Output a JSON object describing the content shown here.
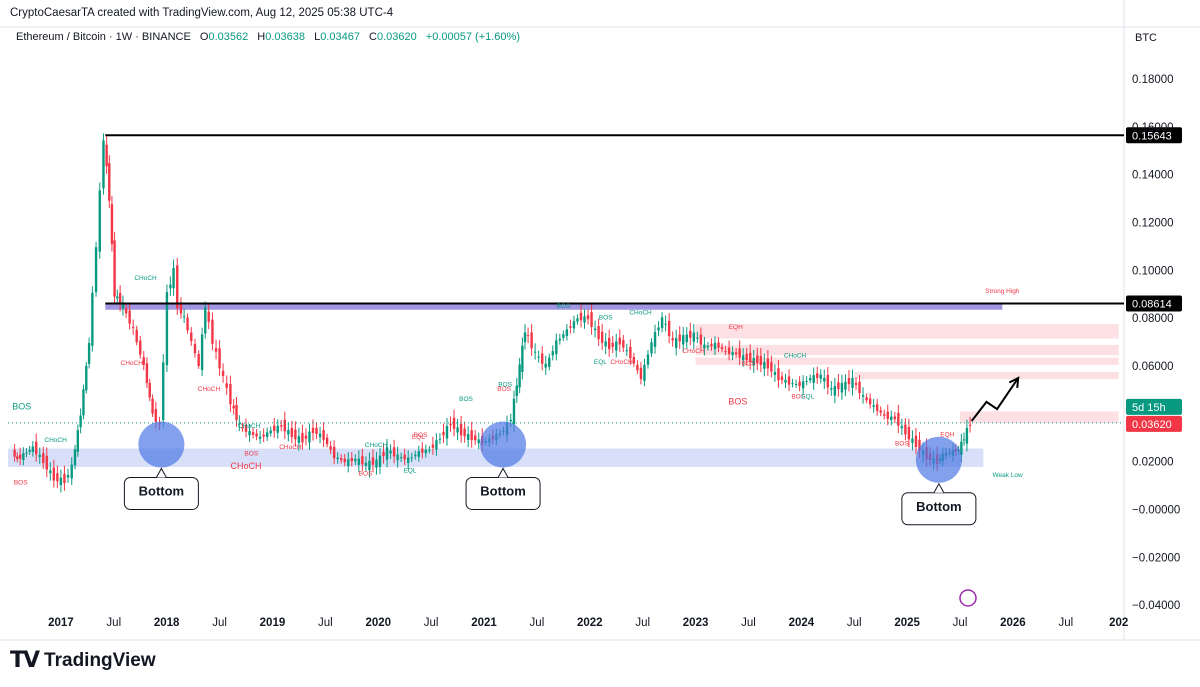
{
  "header": {
    "attribution": "CryptoCaesarTA created with TradingView.com, Aug 12, 2025 05:38 UTC-4"
  },
  "legend": {
    "symbol": "Ethereum / Bitcoin · 1W · BINANCE",
    "open_label": "O",
    "open": "0.03562",
    "high_label": "H",
    "high": "0.03638",
    "low_label": "L",
    "low": "0.03467",
    "close_label": "C",
    "close": "0.03620",
    "change": "+0.00057 (+1.60%)"
  },
  "currency": "BTC",
  "footer": {
    "brand": "TradingView",
    "logo_icon": "tradingview-logo-icon"
  },
  "colors": {
    "up": "#089981",
    "down": "#f23645",
    "zone_blue": "#c9d4f7",
    "zone_purple": "#8f84dc",
    "zone_pink": "#fbd6da",
    "circle": "#4e78e6"
  },
  "chart_data": {
    "type": "candlestick",
    "symbol": "ETHBTC",
    "timeframe": "1W",
    "ylim": [
      -0.042,
      0.19
    ],
    "y_ticks": [
      "0.18000",
      "0.16000",
      "0.14000",
      "0.12000",
      "0.10000",
      "0.08000",
      "0.06000",
      "0.02000",
      "−0.00000",
      "−0.02000",
      "−0.04000"
    ],
    "y_tick_values": [
      0.18,
      0.16,
      0.14,
      0.12,
      0.1,
      0.08,
      0.06,
      0.02,
      0.0,
      -0.02,
      -0.04
    ],
    "x_ticks": [
      "2017",
      "Jul",
      "2018",
      "Jul",
      "2019",
      "Jul",
      "2020",
      "Jul",
      "2021",
      "Jul",
      "2022",
      "Jul",
      "2023",
      "Jul",
      "2024",
      "Jul",
      "2025",
      "Jul",
      "2026",
      "Jul",
      "202"
    ],
    "x_tick_values": [
      2017.0,
      2017.5,
      2018.0,
      2018.5,
      2019.0,
      2019.5,
      2020.0,
      2020.5,
      2021.0,
      2021.5,
      2022.0,
      2022.5,
      2023.0,
      2023.5,
      2024.0,
      2024.5,
      2025.0,
      2025.5,
      2026.0,
      2026.5,
      2027.0
    ],
    "bold_x_ticks": [
      "2017",
      "2018",
      "2019",
      "2020",
      "2021",
      "2022",
      "2023",
      "2024",
      "2025",
      "2026",
      "202"
    ],
    "price_path": [
      [
        2016.55,
        0.024
      ],
      [
        2016.6,
        0.021
      ],
      [
        2016.75,
        0.026
      ],
      [
        2016.85,
        0.02
      ],
      [
        2016.95,
        0.013
      ],
      [
        2017.05,
        0.012
      ],
      [
        2017.12,
        0.018
      ],
      [
        2017.2,
        0.04
      ],
      [
        2017.28,
        0.07
      ],
      [
        2017.35,
        0.11
      ],
      [
        2017.42,
        0.155
      ],
      [
        2017.47,
        0.13
      ],
      [
        2017.52,
        0.09
      ],
      [
        2017.6,
        0.085
      ],
      [
        2017.7,
        0.075
      ],
      [
        2017.8,
        0.06
      ],
      [
        2017.88,
        0.04
      ],
      [
        2017.95,
        0.035
      ],
      [
        2018.02,
        0.09
      ],
      [
        2018.08,
        0.1
      ],
      [
        2018.12,
        0.085
      ],
      [
        2018.18,
        0.08
      ],
      [
        2018.25,
        0.07
      ],
      [
        2018.32,
        0.06
      ],
      [
        2018.38,
        0.085
      ],
      [
        2018.45,
        0.07
      ],
      [
        2018.55,
        0.055
      ],
      [
        2018.62,
        0.045
      ],
      [
        2018.7,
        0.035
      ],
      [
        2018.8,
        0.032
      ],
      [
        2018.9,
        0.03
      ],
      [
        2019.0,
        0.033
      ],
      [
        2019.1,
        0.035
      ],
      [
        2019.2,
        0.031
      ],
      [
        2019.3,
        0.029
      ],
      [
        2019.4,
        0.033
      ],
      [
        2019.5,
        0.03
      ],
      [
        2019.6,
        0.022
      ],
      [
        2019.7,
        0.02
      ],
      [
        2019.8,
        0.021
      ],
      [
        2019.9,
        0.019
      ],
      [
        2020.0,
        0.02
      ],
      [
        2020.1,
        0.025
      ],
      [
        2020.2,
        0.022
      ],
      [
        2020.3,
        0.021
      ],
      [
        2020.4,
        0.024
      ],
      [
        2020.5,
        0.025
      ],
      [
        2020.6,
        0.03
      ],
      [
        2020.7,
        0.036
      ],
      [
        2020.8,
        0.032
      ],
      [
        2020.9,
        0.03
      ],
      [
        2021.0,
        0.028
      ],
      [
        2021.1,
        0.03
      ],
      [
        2021.2,
        0.033
      ],
      [
        2021.27,
        0.038
      ],
      [
        2021.35,
        0.06
      ],
      [
        2021.4,
        0.075
      ],
      [
        2021.5,
        0.065
      ],
      [
        2021.6,
        0.06
      ],
      [
        2021.7,
        0.07
      ],
      [
        2021.8,
        0.075
      ],
      [
        2021.9,
        0.08
      ],
      [
        2022.0,
        0.08
      ],
      [
        2022.1,
        0.072
      ],
      [
        2022.2,
        0.068
      ],
      [
        2022.3,
        0.07
      ],
      [
        2022.4,
        0.064
      ],
      [
        2022.5,
        0.055
      ],
      [
        2022.6,
        0.07
      ],
      [
        2022.7,
        0.08
      ],
      [
        2022.8,
        0.07
      ],
      [
        2022.9,
        0.072
      ],
      [
        2023.0,
        0.073
      ],
      [
        2023.1,
        0.068
      ],
      [
        2023.2,
        0.069
      ],
      [
        2023.3,
        0.066
      ],
      [
        2023.4,
        0.065
      ],
      [
        2023.5,
        0.063
      ],
      [
        2023.6,
        0.062
      ],
      [
        2023.7,
        0.06
      ],
      [
        2023.8,
        0.055
      ],
      [
        2023.9,
        0.053
      ],
      [
        2024.0,
        0.052
      ],
      [
        2024.1,
        0.055
      ],
      [
        2024.2,
        0.056
      ],
      [
        2024.3,
        0.05
      ],
      [
        2024.4,
        0.052
      ],
      [
        2024.5,
        0.054
      ],
      [
        2024.6,
        0.047
      ],
      [
        2024.7,
        0.043
      ],
      [
        2024.8,
        0.039
      ],
      [
        2024.9,
        0.038
      ],
      [
        2025.0,
        0.032
      ],
      [
        2025.1,
        0.027
      ],
      [
        2025.2,
        0.022
      ],
      [
        2025.3,
        0.02
      ],
      [
        2025.35,
        0.023
      ],
      [
        2025.42,
        0.024
      ],
      [
        2025.5,
        0.025
      ],
      [
        2025.55,
        0.03
      ],
      [
        2025.61,
        0.0362
      ]
    ],
    "horizontal_levels": [
      {
        "label": "0.15643",
        "value": 0.15643,
        "x_start": 2017.42
      },
      {
        "label": "0.08614",
        "value": 0.08614,
        "x_start": 2017.42
      }
    ],
    "last_price": {
      "label": "0.03620",
      "value": 0.0362
    },
    "countdown": "5d 15h",
    "zones": [
      {
        "name": "purple supply",
        "x": [
          2017.42,
          2025.9
        ],
        "y": [
          0.0835,
          0.0865
        ],
        "color": "purple"
      },
      {
        "name": "blue demand",
        "x": [
          2016.5,
          2025.72
        ],
        "y": [
          0.0178,
          0.0255
        ],
        "color": "blue"
      },
      {
        "name": "pink 1",
        "x": [
          2023.0,
          2027.0
        ],
        "y": [
          0.0715,
          0.0775
        ],
        "color": "pink"
      },
      {
        "name": "pink 2",
        "x": [
          2023.0,
          2027.0
        ],
        "y": [
          0.0645,
          0.0688
        ],
        "color": "pink"
      },
      {
        "name": "pink 3",
        "x": [
          2023.0,
          2027.0
        ],
        "y": [
          0.0605,
          0.0635
        ],
        "color": "pink"
      },
      {
        "name": "pink 4",
        "x": [
          2024.5,
          2027.0
        ],
        "y": [
          0.0545,
          0.0575
        ],
        "color": "pink"
      },
      {
        "name": "pink 5",
        "x": [
          2025.5,
          2027.0
        ],
        "y": [
          0.0362,
          0.041
        ],
        "color": "pink"
      }
    ],
    "bottoms": [
      {
        "label": "Bottom",
        "x": 2017.95,
        "y": 0.0272
      },
      {
        "label": "Bottom",
        "x": 2021.18,
        "y": 0.0272
      },
      {
        "label": "Bottom",
        "x": 2025.3,
        "y": 0.0208
      }
    ],
    "projection_arrow": [
      [
        2025.61,
        0.037
      ],
      [
        2025.75,
        0.045
      ],
      [
        2025.85,
        0.042
      ],
      [
        2026.05,
        0.055
      ]
    ],
    "annotations": [
      {
        "text": "BOS",
        "x": 2016.63,
        "y": 0.0418,
        "size": "lg",
        "color": "green"
      },
      {
        "text": "CHoCH",
        "x": 2016.95,
        "y": 0.0282,
        "size": "sm",
        "color": "green"
      },
      {
        "text": "BOS",
        "x": 2016.62,
        "y": 0.0105,
        "size": "sm",
        "color": "red"
      },
      {
        "text": "CHoCH",
        "x": 2017.8,
        "y": 0.096,
        "size": "sm",
        "color": "green"
      },
      {
        "text": "CHoCH",
        "x": 2017.67,
        "y": 0.0605,
        "size": "sm",
        "color": "red"
      },
      {
        "text": "CHoCH",
        "x": 2018.4,
        "y": 0.0495,
        "size": "sm",
        "color": "red"
      },
      {
        "text": "CHoCH",
        "x": 2018.78,
        "y": 0.034,
        "size": "sm",
        "color": "green"
      },
      {
        "text": "CHoCH",
        "x": 2018.75,
        "y": 0.017,
        "size": "lg",
        "color": "red"
      },
      {
        "text": "BOS",
        "x": 2018.8,
        "y": 0.0225,
        "size": "sm",
        "color": "red"
      },
      {
        "text": "CHoCH",
        "x": 2019.17,
        "y": 0.0254,
        "size": "sm",
        "color": "red"
      },
      {
        "text": "BOS",
        "x": 2019.88,
        "y": 0.0143,
        "size": "sm",
        "color": "red"
      },
      {
        "text": "CHoCH",
        "x": 2019.98,
        "y": 0.0262,
        "size": "sm",
        "color": "green"
      },
      {
        "text": "EQL",
        "x": 2020.3,
        "y": 0.0155,
        "size": "sm",
        "color": "green"
      },
      {
        "text": "EQL",
        "x": 2020.38,
        "y": 0.0295,
        "size": "sm",
        "color": "red"
      },
      {
        "text": "BOS",
        "x": 2020.4,
        "y": 0.0303,
        "size": "sm",
        "color": "red"
      },
      {
        "text": "BOS",
        "x": 2020.83,
        "y": 0.0453,
        "size": "sm",
        "color": "green"
      },
      {
        "text": "BOS",
        "x": 2021.19,
        "y": 0.0495,
        "size": "sm",
        "color": "red"
      },
      {
        "text": "BOS",
        "x": 2021.2,
        "y": 0.0515,
        "size": "sm",
        "color": "green"
      },
      {
        "text": "BOS",
        "x": 2021.75,
        "y": 0.0842,
        "size": "sm",
        "color": "green"
      },
      {
        "text": "BOS",
        "x": 2022.15,
        "y": 0.0795,
        "size": "sm",
        "color": "green"
      },
      {
        "text": "EQL",
        "x": 2022.1,
        "y": 0.0608,
        "size": "sm",
        "color": "green"
      },
      {
        "text": "CHoCH",
        "x": 2022.3,
        "y": 0.0608,
        "size": "sm",
        "color": "red"
      },
      {
        "text": "CHoCH",
        "x": 2022.48,
        "y": 0.0815,
        "size": "sm",
        "color": "green"
      },
      {
        "text": "CHoCH",
        "x": 2022.98,
        "y": 0.0655,
        "size": "sm",
        "color": "red"
      },
      {
        "text": "EQH",
        "x": 2023.38,
        "y": 0.0755,
        "size": "sm",
        "color": "red"
      },
      {
        "text": "BOS",
        "x": 2023.4,
        "y": 0.0438,
        "size": "lg",
        "color": "red"
      },
      {
        "text": "BOS",
        "x": 2023.5,
        "y": 0.0603,
        "size": "sm",
        "color": "red"
      },
      {
        "text": "CHoCH",
        "x": 2023.94,
        "y": 0.0635,
        "size": "sm",
        "color": "green"
      },
      {
        "text": "BOS",
        "x": 2023.97,
        "y": 0.0465,
        "size": "sm",
        "color": "red"
      },
      {
        "text": "EQL",
        "x": 2024.06,
        "y": 0.0465,
        "size": "sm",
        "color": "green"
      },
      {
        "text": "Strong High",
        "x": 2025.9,
        "y": 0.0905,
        "size": "sm",
        "color": "red"
      },
      {
        "text": "BOS",
        "x": 2024.95,
        "y": 0.0268,
        "size": "sm",
        "color": "red"
      },
      {
        "text": "EQH",
        "x": 2025.38,
        "y": 0.0305,
        "size": "sm",
        "color": "red"
      },
      {
        "text": "Weak Low",
        "x": 2025.95,
        "y": 0.0135,
        "size": "sm",
        "color": "green"
      }
    ]
  }
}
